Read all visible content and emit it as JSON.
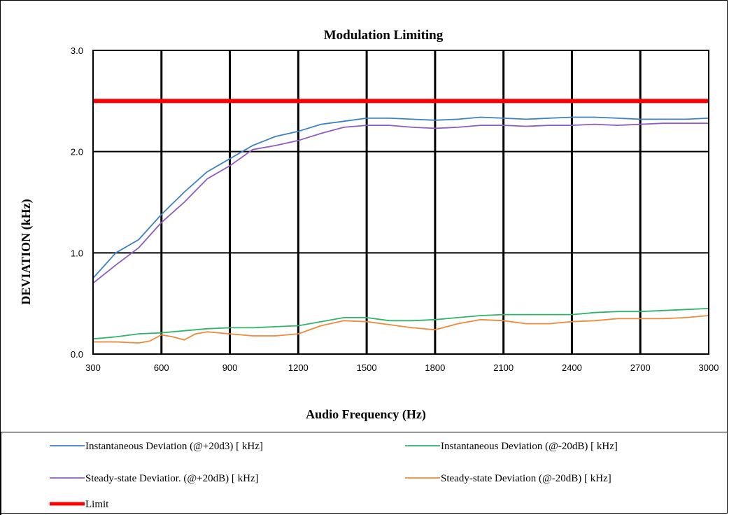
{
  "chart_data": {
    "type": "line",
    "title": "Modulation Limiting",
    "xlabel": "Audio Frequency (Hz)",
    "ylabel": "DEVIATION (kHz)",
    "xlim": [
      300,
      3000
    ],
    "ylim": [
      0.0,
      3.0
    ],
    "x_ticks": [
      "300",
      "600",
      "900",
      "1200",
      "1500",
      "1800",
      "2100",
      "2400",
      "2700",
      "3000"
    ],
    "y_ticks": [
      "0.0",
      "1.0",
      "2.0",
      "3.0"
    ],
    "grid": true,
    "legend_position": "bottom",
    "series": [
      {
        "name": "Instantaneous Deviation (@+20d3) [ kHz]",
        "color": "#3b82c4",
        "x": [
          300,
          400,
          500,
          600,
          700,
          800,
          900,
          1000,
          1100,
          1200,
          1300,
          1400,
          1500,
          1600,
          1700,
          1800,
          1900,
          2000,
          2100,
          2200,
          2300,
          2400,
          2500,
          2600,
          2700,
          2800,
          2900,
          3000
        ],
        "values": [
          0.75,
          1.0,
          1.13,
          1.38,
          1.6,
          1.8,
          1.93,
          2.06,
          2.15,
          2.2,
          2.27,
          2.3,
          2.33,
          2.33,
          2.32,
          2.31,
          2.32,
          2.34,
          2.33,
          2.32,
          2.33,
          2.34,
          2.34,
          2.33,
          2.32,
          2.32,
          2.32,
          2.33
        ]
      },
      {
        "name": "Instantaneous Deviation (@-20dB) [ kHz]",
        "color": "#2fb56a",
        "x": [
          300,
          400,
          500,
          600,
          700,
          800,
          900,
          1000,
          1100,
          1200,
          1300,
          1400,
          1500,
          1600,
          1700,
          1800,
          1900,
          2000,
          2100,
          2200,
          2300,
          2400,
          2500,
          2600,
          2700,
          2800,
          2900,
          3000
        ],
        "values": [
          0.15,
          0.17,
          0.2,
          0.21,
          0.23,
          0.25,
          0.26,
          0.26,
          0.27,
          0.28,
          0.32,
          0.36,
          0.36,
          0.33,
          0.33,
          0.34,
          0.36,
          0.38,
          0.39,
          0.39,
          0.39,
          0.39,
          0.41,
          0.42,
          0.42,
          0.43,
          0.44,
          0.45
        ]
      },
      {
        "name": "Steady-state Deviatior. (@+20dB) [ kHz]",
        "color": "#8e5bc3",
        "x": [
          300,
          400,
          500,
          600,
          700,
          800,
          900,
          1000,
          1100,
          1200,
          1300,
          1400,
          1500,
          1600,
          1700,
          1800,
          1900,
          2000,
          2100,
          2200,
          2300,
          2400,
          2500,
          2600,
          2700,
          2800,
          2900,
          3000
        ],
        "values": [
          0.7,
          0.88,
          1.05,
          1.3,
          1.5,
          1.73,
          1.86,
          2.02,
          2.06,
          2.11,
          2.18,
          2.24,
          2.26,
          2.26,
          2.24,
          2.23,
          2.24,
          2.26,
          2.26,
          2.25,
          2.26,
          2.26,
          2.27,
          2.26,
          2.27,
          2.28,
          2.28,
          2.28
        ]
      },
      {
        "name": "Steady-state Deviation (@-20dB) [ kHz]",
        "color": "#ee8a3a",
        "x": [
          300,
          400,
          500,
          550,
          600,
          650,
          700,
          750,
          800,
          900,
          1000,
          1100,
          1200,
          1300,
          1400,
          1500,
          1600,
          1700,
          1800,
          1900,
          2000,
          2100,
          2200,
          2300,
          2400,
          2500,
          2600,
          2700,
          2800,
          2900,
          3000
        ],
        "values": [
          0.12,
          0.12,
          0.11,
          0.13,
          0.19,
          0.17,
          0.14,
          0.2,
          0.22,
          0.2,
          0.18,
          0.18,
          0.2,
          0.28,
          0.33,
          0.32,
          0.29,
          0.26,
          0.24,
          0.3,
          0.34,
          0.33,
          0.3,
          0.3,
          0.32,
          0.33,
          0.35,
          0.35,
          0.35,
          0.36,
          0.38
        ]
      },
      {
        "name": "Limit",
        "color": "#ff0000",
        "x": [
          300,
          3000
        ],
        "values": [
          2.5,
          2.5
        ]
      }
    ]
  }
}
